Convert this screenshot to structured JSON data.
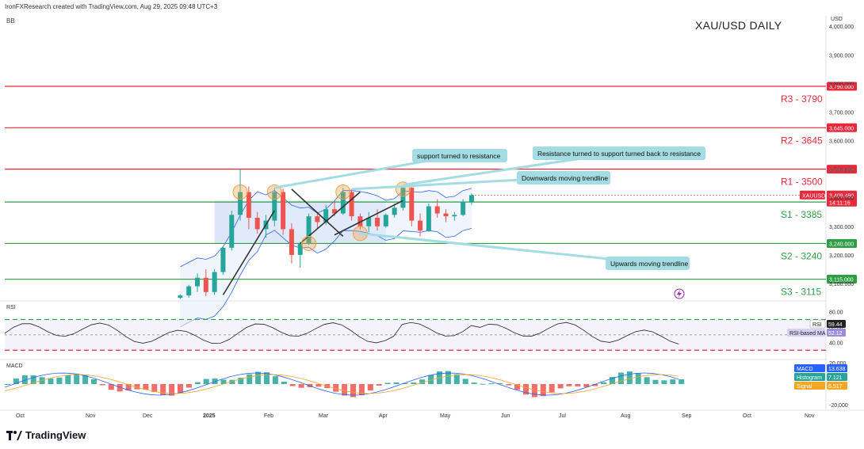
{
  "header": {
    "attribution": "IronFXResearch created with TradingView.com, Aug 29, 2025 09:48 UTC+3",
    "indicator_tag": "BB",
    "title": "XAU/USD DAILY",
    "currency": "USD"
  },
  "brand": {
    "name": "TradingView"
  },
  "colors": {
    "resistance": "#e8293b",
    "support": "#2e9e44",
    "candle_up": "#26a69a",
    "candle_down": "#ef5350",
    "bands": "#2962ff",
    "band_fill": "#e3ecfb",
    "trendline": "#333333",
    "callout_bg": "#a4dce3",
    "highlight": "#f0a040",
    "rsi_line": "#222222",
    "rsi_ma": "#9c8cd9",
    "macd_line": "#2962ff",
    "signal_line": "#f5a623",
    "price_badge": "#e8293b"
  },
  "chart_data": {
    "type": "candlestick",
    "title": "XAU/USD DAILY",
    "symbol": "XAUUSD",
    "last_price": "3,409.480",
    "countdown": "14:11:16",
    "price_axis": {
      "range": [
        3050,
        4020
      ],
      "ticks": [
        {
          "value": 4000,
          "label": "4,000.000"
        },
        {
          "value": 3900,
          "label": "3,900.000"
        },
        {
          "value": 3800,
          "label": "3,800.000"
        },
        {
          "value": 3700,
          "label": "3,700.000"
        },
        {
          "value": 3600,
          "label": "3,600.000"
        },
        {
          "value": 3500,
          "label": "3,500.000"
        },
        {
          "value": 3400,
          "label": "3,400.000"
        },
        {
          "value": 3300,
          "label": "3,300.000"
        },
        {
          "value": 3200,
          "label": "3,200.000"
        },
        {
          "value": 3100,
          "label": "3,100.000"
        }
      ]
    },
    "time_axis": {
      "labels": [
        "Oct",
        "Nov",
        "Dec",
        "2025",
        "Feb",
        "Mar",
        "Apr",
        "May",
        "Jun",
        "Jul",
        "Aug",
        "Sep",
        "Oct",
        "Nov"
      ]
    },
    "levels": [
      {
        "name": "R3 - 3790",
        "value": 3790,
        "badge": "3,790.000",
        "kind": "resistance"
      },
      {
        "name": "R2 - 3645",
        "value": 3645,
        "badge": "3,645.000",
        "kind": "resistance"
      },
      {
        "name": "R1 - 3500",
        "value": 3500,
        "badge": "3,500.000",
        "kind": "resistance"
      },
      {
        "name": "S1 - 3385",
        "value": 3385,
        "badge": "3,385.000",
        "kind": "support"
      },
      {
        "name": "S2 - 3240",
        "value": 3240,
        "badge": "3,240.000",
        "kind": "support"
      },
      {
        "name": "S3 - 3115",
        "value": 3115,
        "badge": "3,115.000",
        "kind": "support"
      }
    ],
    "range_box": {
      "from": 24,
      "to": 44,
      "low": 3240,
      "high": 3390
    },
    "annotations": [
      "support turned to resistance",
      "Resistance turned to support turned back to resistance",
      "Downwards moving trendline",
      "Upwards moving trendline"
    ],
    "trendlines": [
      {
        "name": "downwards",
        "x1": 33,
        "y1": 3430,
        "x2": 39,
        "y2": 3265
      },
      {
        "name": "upwards-1",
        "x1": 25,
        "y1": 3060,
        "x2": 31,
        "y2": 3355
      },
      {
        "name": "upwards-2",
        "x1": 34,
        "y1": 3240,
        "x2": 41,
        "y2": 3420
      },
      {
        "name": "upwards-3",
        "x1": 38,
        "y1": 3270,
        "x2": 46,
        "y2": 3390
      }
    ],
    "candles": [
      [
        20,
        3050,
        3062,
        3045,
        3058
      ],
      [
        21,
        3058,
        3095,
        3050,
        3090
      ],
      [
        22,
        3090,
        3135,
        3070,
        3120
      ],
      [
        23,
        3120,
        3150,
        3055,
        3070
      ],
      [
        24,
        3070,
        3150,
        3060,
        3140
      ],
      [
        25,
        3140,
        3230,
        3130,
        3225
      ],
      [
        26,
        3225,
        3355,
        3215,
        3340
      ],
      [
        27,
        3340,
        3500,
        3320,
        3420
      ],
      [
        28,
        3420,
        3440,
        3290,
        3330
      ],
      [
        29,
        3330,
        3350,
        3275,
        3290
      ],
      [
        30,
        3290,
        3340,
        3260,
        3320
      ],
      [
        31,
        3320,
        3435,
        3300,
        3420
      ],
      [
        32,
        3420,
        3432,
        3270,
        3290
      ],
      [
        33,
        3290,
        3310,
        3170,
        3200
      ],
      [
        34,
        3200,
        3245,
        3155,
        3240
      ],
      [
        35,
        3240,
        3345,
        3235,
        3335
      ],
      [
        36,
        3335,
        3350,
        3290,
        3315
      ],
      [
        37,
        3315,
        3375,
        3305,
        3360
      ],
      [
        38,
        3360,
        3390,
        3335,
        3345
      ],
      [
        39,
        3345,
        3435,
        3340,
        3420
      ],
      [
        40,
        3420,
        3430,
        3320,
        3335
      ],
      [
        41,
        3335,
        3345,
        3290,
        3300
      ],
      [
        42,
        3300,
        3350,
        3280,
        3330
      ],
      [
        43,
        3330,
        3360,
        3285,
        3300
      ],
      [
        44,
        3300,
        3345,
        3295,
        3340
      ],
      [
        45,
        3340,
        3380,
        3330,
        3365
      ],
      [
        46,
        3365,
        3445,
        3355,
        3435
      ],
      [
        47,
        3435,
        3440,
        3300,
        3320
      ],
      [
        48,
        3320,
        3345,
        3265,
        3285
      ],
      [
        49,
        3285,
        3380,
        3280,
        3370
      ],
      [
        50,
        3370,
        3395,
        3330,
        3345
      ],
      [
        51,
        3345,
        3360,
        3315,
        3335
      ],
      [
        52,
        3335,
        3350,
        3320,
        3340
      ],
      [
        53,
        3340,
        3395,
        3335,
        3385
      ],
      [
        54,
        3385,
        3415,
        3375,
        3409
      ]
    ],
    "rsi": {
      "label": "RSI",
      "value": "59.44",
      "ma_label": "RSI-based MA",
      "ma_value": "52.12",
      "levels": [
        70,
        50,
        30
      ],
      "tick_labels": [
        "80.00",
        "60.00",
        "40.00"
      ]
    },
    "macd": {
      "macd_label": "MACD",
      "macd_value": "13.638",
      "hist_label": "Histogram",
      "hist_value": "7.121",
      "signal_label": "Signal",
      "signal_value": "6.517",
      "tick_labels": [
        "20.000",
        "-20.000"
      ]
    }
  }
}
